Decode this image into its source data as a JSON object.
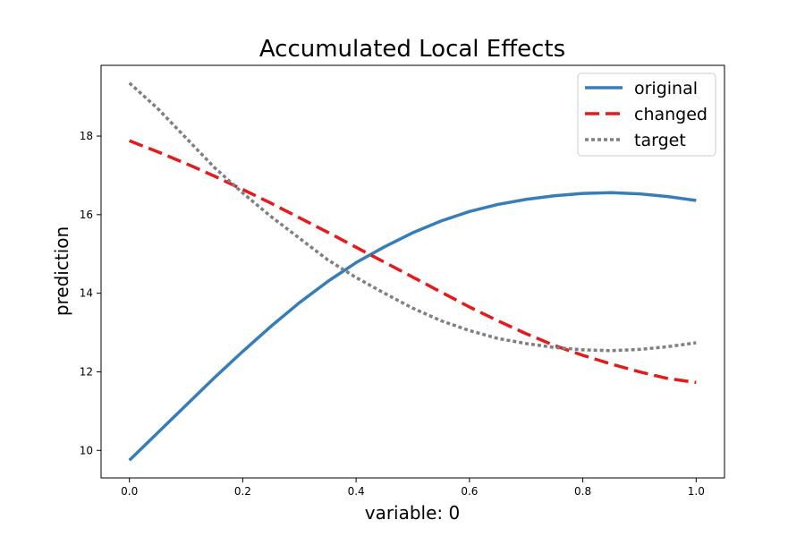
{
  "chart_data": {
    "type": "line",
    "title": "Accumulated Local Effects",
    "xlabel": "variable: 0",
    "ylabel": "prediction",
    "xlim": [
      -0.05,
      1.05
    ],
    "ylim": [
      9.3,
      19.8
    ],
    "xticks": [
      0.0,
      0.2,
      0.4,
      0.6,
      0.8,
      1.0
    ],
    "xtick_labels": [
      "0.0",
      "0.2",
      "0.4",
      "0.6",
      "0.8",
      "1.0"
    ],
    "yticks": [
      10,
      12,
      14,
      16,
      18
    ],
    "ytick_labels": [
      "10",
      "12",
      "14",
      "16",
      "18"
    ],
    "grid": false,
    "legend_position": "top-right",
    "x": [
      0.0,
      0.05,
      0.1,
      0.15,
      0.2,
      0.25,
      0.3,
      0.35,
      0.4,
      0.45,
      0.5,
      0.55,
      0.6,
      0.65,
      0.7,
      0.75,
      0.8,
      0.85,
      0.9,
      0.95,
      1.0
    ],
    "series": [
      {
        "name": "original",
        "color": "#377eb8",
        "style": "solid",
        "values": [
          9.75,
          10.45,
          11.15,
          11.85,
          12.52,
          13.16,
          13.76,
          14.3,
          14.78,
          15.18,
          15.54,
          15.84,
          16.08,
          16.26,
          16.39,
          16.48,
          16.54,
          16.56,
          16.53,
          16.46,
          16.36
        ]
      },
      {
        "name": "changed",
        "color": "#e41a1c",
        "style": "dashed",
        "values": [
          17.88,
          17.6,
          17.3,
          16.98,
          16.64,
          16.29,
          15.92,
          15.55,
          15.17,
          14.79,
          14.41,
          14.03,
          13.65,
          13.3,
          12.97,
          12.67,
          12.42,
          12.2,
          12.0,
          11.83,
          11.73
        ]
      },
      {
        "name": "target",
        "color": "#808080",
        "style": "dotted",
        "values": [
          19.35,
          18.7,
          17.95,
          17.2,
          16.55,
          15.95,
          15.4,
          14.85,
          14.4,
          14.0,
          13.62,
          13.3,
          13.05,
          12.85,
          12.72,
          12.62,
          12.56,
          12.54,
          12.57,
          12.64,
          12.74
        ]
      }
    ]
  }
}
